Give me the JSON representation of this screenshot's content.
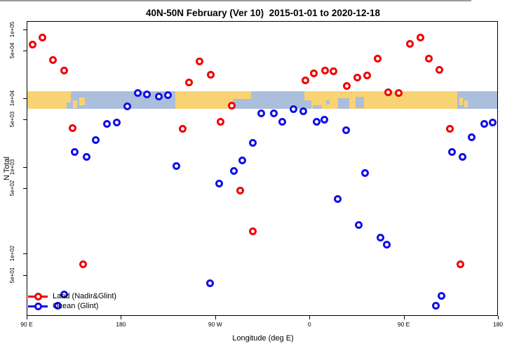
{
  "title": "40N-50N February (Ver 10)  2015-01-01 to 2020-12-18",
  "colors": {
    "land_series": "#F00000",
    "ocean_series": "#1010E8",
    "map_land": "#F8D373",
    "map_ocean": "#ABBEDB",
    "break_line": "#9A9A9A",
    "frame": "#000000"
  },
  "chart_data": {
    "type": "scatter",
    "title": "40N-50N February (Ver 10)  2015-01-01 to 2020-12-18",
    "xlabel": "Longitude (deg E)",
    "ylabel": "N Total",
    "x_scale": "longitude, wraps eastward from 90E to 180 (span 450 deg)",
    "y_scale": "log10 with axis break (gray line) between ~3e+02 and ~1.8e+02",
    "xlim": [
      90,
      540
    ],
    "ylim_top_panel": [
      180,
      100000
    ],
    "ylim_bottom_panel": [
      15,
      300
    ],
    "grid": false,
    "legend_position": "bottom-left",
    "x_ticks": [
      {
        "label": "90 E",
        "lon": 90
      },
      {
        "label": "180",
        "lon": 180
      },
      {
        "label": "90 W",
        "lon": 270
      },
      {
        "label": "0",
        "lon": 360
      },
      {
        "label": "90 E",
        "lon": 450
      },
      {
        "label": "180",
        "lon": 540
      }
    ],
    "y_ticks": [
      {
        "label": "1e+05",
        "v": 100000
      },
      {
        "label": "5e+04",
        "v": 50000
      },
      {
        "label": "1e+04",
        "v": 10000
      },
      {
        "label": "5e+03",
        "v": 5000
      },
      {
        "label": "1e+03",
        "v": 1000
      },
      {
        "label": "5e+02",
        "v": 500
      },
      {
        "label": "1e+02",
        "v": 100
      },
      {
        "label": "5e+01",
        "v": 50
      }
    ],
    "map_band": {
      "description": "land/ocean world strip for 40N-50N drawn across plot at ~1e+04 level",
      "v_top": 12600,
      "v_bottom": 7000,
      "land_patches": [
        {
          "lon0": 90,
          "lon1": 132.5,
          "f0": 0,
          "f1": 1
        },
        {
          "lon0": 232,
          "lon1": 287,
          "f0": 0,
          "f1": 1
        },
        {
          "lon0": 287,
          "lon1": 304,
          "f0": 0,
          "f1": 0.45
        },
        {
          "lon0": 355,
          "lon1": 501,
          "f0": 0,
          "f1": 1
        },
        {
          "lon0": 134.5,
          "lon1": 138.5,
          "f0": 0.5,
          "f1": 0.95
        },
        {
          "lon0": 140.5,
          "lon1": 145.5,
          "f0": 0.35,
          "f1": 0.8
        },
        {
          "lon0": 503,
          "lon1": 506.5,
          "f0": 0.35,
          "f1": 0.8
        },
        {
          "lon0": 508,
          "lon1": 511,
          "f0": 0.5,
          "f1": 0.9
        }
      ],
      "sea_patches": [
        {
          "lon0": 128,
          "lon1": 132.5,
          "f0": 0.65,
          "f1": 1
        },
        {
          "lon0": 355,
          "lon1": 362,
          "f0": 0.5,
          "f1": 1
        },
        {
          "lon0": 363,
          "lon1": 372,
          "f0": 0.8,
          "f1": 1
        },
        {
          "lon0": 376,
          "lon1": 379,
          "f0": 0.5,
          "f1": 0.75
        },
        {
          "lon0": 387,
          "lon1": 398,
          "f0": 0.4,
          "f1": 1
        },
        {
          "lon0": 404,
          "lon1": 412,
          "f0": 0.3,
          "f1": 0.95
        }
      ]
    },
    "series": [
      {
        "name": "Land (Nadir&Glint)",
        "color": "#F00000",
        "points": [
          {
            "lon": 96,
            "n": 61000
          },
          {
            "lon": 105,
            "n": 76000
          },
          {
            "lon": 115,
            "n": 36000
          },
          {
            "lon": 126,
            "n": 25500
          },
          {
            "lon": 134,
            "n": 3700
          },
          {
            "lon": 144,
            "n": 70
          },
          {
            "lon": 239,
            "n": 3600
          },
          {
            "lon": 245,
            "n": 17000
          },
          {
            "lon": 255,
            "n": 34000
          },
          {
            "lon": 266,
            "n": 22000
          },
          {
            "lon": 275,
            "n": 4500
          },
          {
            "lon": 286,
            "n": 7900
          },
          {
            "lon": 294,
            "n": 460
          },
          {
            "lon": 306,
            "n": 200
          },
          {
            "lon": 356,
            "n": 18000
          },
          {
            "lon": 364,
            "n": 23000
          },
          {
            "lon": 375,
            "n": 25500
          },
          {
            "lon": 383,
            "n": 24500
          },
          {
            "lon": 396,
            "n": 15000
          },
          {
            "lon": 406,
            "n": 20000
          },
          {
            "lon": 415,
            "n": 21500
          },
          {
            "lon": 425,
            "n": 38000
          },
          {
            "lon": 435,
            "n": 12300
          },
          {
            "lon": 445,
            "n": 12000
          },
          {
            "lon": 456,
            "n": 62500
          },
          {
            "lon": 466,
            "n": 76000
          },
          {
            "lon": 474,
            "n": 37500
          },
          {
            "lon": 484,
            "n": 26000
          },
          {
            "lon": 494,
            "n": 3600
          },
          {
            "lon": 504,
            "n": 71
          }
        ]
      },
      {
        "name": "Ocean (Glint)",
        "color": "#1010E8",
        "points": [
          {
            "lon": 120,
            "n": 19
          },
          {
            "lon": 126,
            "n": 27
          },
          {
            "lon": 136,
            "n": 1640
          },
          {
            "lon": 147,
            "n": 1420
          },
          {
            "lon": 156,
            "n": 2500
          },
          {
            "lon": 167,
            "n": 4200
          },
          {
            "lon": 176,
            "n": 4400
          },
          {
            "lon": 186,
            "n": 7700
          },
          {
            "lon": 196,
            "n": 12000
          },
          {
            "lon": 205,
            "n": 11500
          },
          {
            "lon": 216,
            "n": 10600
          },
          {
            "lon": 225,
            "n": 11200
          },
          {
            "lon": 233,
            "n": 1040
          },
          {
            "lon": 265,
            "n": 39
          },
          {
            "lon": 274,
            "n": 580
          },
          {
            "lon": 288,
            "n": 880
          },
          {
            "lon": 296,
            "n": 1250
          },
          {
            "lon": 306,
            "n": 2250
          },
          {
            "lon": 314,
            "n": 6100
          },
          {
            "lon": 326,
            "n": 6100
          },
          {
            "lon": 334,
            "n": 4500
          },
          {
            "lon": 345,
            "n": 7000
          },
          {
            "lon": 354,
            "n": 6400
          },
          {
            "lon": 367,
            "n": 4500
          },
          {
            "lon": 374,
            "n": 4900
          },
          {
            "lon": 387,
            "n": 340
          },
          {
            "lon": 395,
            "n": 3400
          },
          {
            "lon": 407,
            "n": 245
          },
          {
            "lon": 413,
            "n": 820
          },
          {
            "lon": 428,
            "n": 167
          },
          {
            "lon": 434,
            "n": 131
          },
          {
            "lon": 481,
            "n": 19
          },
          {
            "lon": 486,
            "n": 26
          },
          {
            "lon": 496,
            "n": 1640
          },
          {
            "lon": 506,
            "n": 1390
          },
          {
            "lon": 515,
            "n": 2700
          },
          {
            "lon": 527,
            "n": 4200
          },
          {
            "lon": 535,
            "n": 4400
          }
        ]
      }
    ]
  }
}
